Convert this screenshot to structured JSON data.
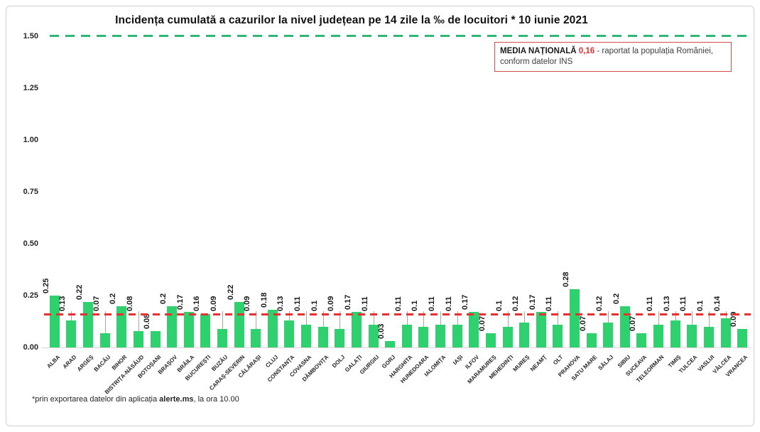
{
  "title": "Incidența cumulată a cazurilor la nivel județean pe 14 zile la ‰ de locuitori *  10 iunie 2021",
  "annotation": {
    "bold": "MEDIA NAȚIONALĂ",
    "value": "0,16",
    "rest": "- raportat la populația României,",
    "line2": "conform datelor INS"
  },
  "footer": {
    "prefix": "*prin exportarea datelor din aplicația ",
    "bold": "alerte.ms",
    "suffix": ", la ora 10.00"
  },
  "chart_data": {
    "type": "bar",
    "title": "Incidența cumulată a cazurilor la nivel județean pe 14 zile la ‰ de locuitori *  10 iunie 2021",
    "xlabel": "",
    "ylabel": "",
    "ylim": [
      0,
      1.5
    ],
    "yticks": [
      "0.00",
      "0.25",
      "0.50",
      "0.75",
      "1.00",
      "1.25",
      "1.50"
    ],
    "grid": false,
    "bar_color": "#2ed16e",
    "reference_lines": [
      {
        "value": 1.5,
        "color": "#2eb873",
        "style": "dashed",
        "label": "upper-gridline"
      },
      {
        "value": 0.16,
        "color": "#e8312e",
        "style": "dashed",
        "label": "media nationala 0,16"
      }
    ],
    "categories": [
      "ALBA",
      "ARAD",
      "ARGEȘ",
      "BACĂU",
      "BIHOR",
      "BISTRIȚA-NĂSĂUD",
      "BOTOȘANI",
      "BRAȘOV",
      "BRĂILA",
      "BUCUREȘTI",
      "BUZĂU",
      "CARAȘ-SEVERIN",
      "CĂLĂRAȘI",
      "CLUJ",
      "CONSTANȚA",
      "COVASNA",
      "DÂMBOVIȚA",
      "DOLJ",
      "GALAȚI",
      "GIURGIU",
      "GORJ",
      "HARGHITA",
      "HUNEDOARA",
      "IALOMIȚA",
      "IAȘI",
      "ILFOV",
      "MARAMUREȘ",
      "MEHEDINȚI",
      "MUREȘ",
      "NEAMȚ",
      "OLT",
      "PRAHOVA",
      "SATU MARE",
      "SĂLAJ",
      "SIBIU",
      "SUCEAVA",
      "TELEORMAN",
      "TIMIȘ",
      "TULCEA",
      "VASLUI",
      "VÂLCEA",
      "VRANCEA"
    ],
    "values": [
      0.25,
      0.13,
      0.22,
      0.07,
      0.2,
      0.08,
      0.08,
      0.2,
      0.17,
      0.16,
      0.09,
      0.22,
      0.09,
      0.18,
      0.13,
      0.11,
      0.1,
      0.09,
      0.17,
      0.11,
      0.03,
      0.11,
      0.1,
      0.11,
      0.11,
      0.17,
      0.07,
      0.1,
      0.12,
      0.17,
      0.11,
      0.28,
      0.07,
      0.12,
      0.2,
      0.07,
      0.11,
      0.13,
      0.11,
      0.1,
      0.14,
      0.09
    ],
    "value_labels": [
      "0.25",
      "0.13",
      "0.22",
      "0.07",
      "0.2",
      "0.08",
      "0.08",
      "0.2",
      "0.17",
      "0.16",
      "0.09",
      "0.22",
      "0.09",
      "0.18",
      "0.13",
      "0.11",
      "0.1",
      "0.09",
      "0.17",
      "0.11",
      "0.03",
      "0.11",
      "0.1",
      "0.11",
      "0.11",
      "0.17",
      "0.07",
      "0.1",
      "0.12",
      "0.17",
      "0.11",
      "0.28",
      "0.07",
      "0.12",
      "0.2",
      "0.07",
      "0.11",
      "0.13",
      "0.11",
      "0.1",
      "0.14",
      "0.09"
    ],
    "low_label_indices": [
      6,
      20,
      26,
      32,
      35,
      41
    ]
  }
}
